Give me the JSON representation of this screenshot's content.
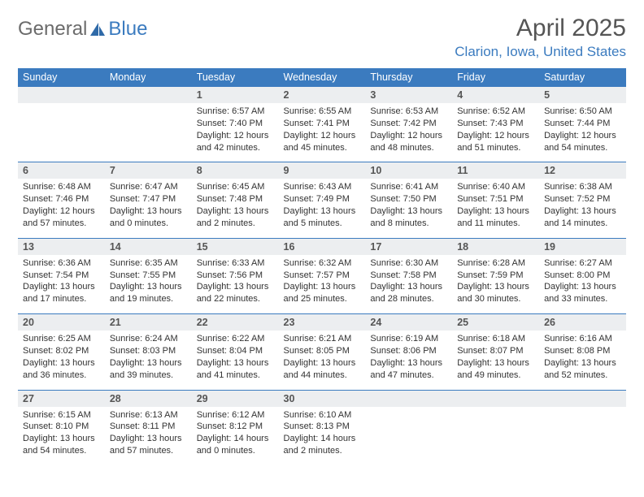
{
  "logo": {
    "text1": "General",
    "text2": "Blue"
  },
  "title": "April 2025",
  "location": "Clarion, Iowa, United States",
  "colors": {
    "header_bg": "#3b7bbf",
    "header_text": "#ffffff",
    "daynum_bg": "#eceef0",
    "border": "#3b7bbf",
    "body_text": "#333333",
    "title_text": "#555555"
  },
  "dow": [
    "Sunday",
    "Monday",
    "Tuesday",
    "Wednesday",
    "Thursday",
    "Friday",
    "Saturday"
  ],
  "weeks": [
    {
      "nums": [
        "",
        "",
        "1",
        "2",
        "3",
        "4",
        "5"
      ],
      "cells": [
        null,
        null,
        {
          "sunrise": "6:57 AM",
          "sunset": "7:40 PM",
          "daylight": "12 hours and 42 minutes."
        },
        {
          "sunrise": "6:55 AM",
          "sunset": "7:41 PM",
          "daylight": "12 hours and 45 minutes."
        },
        {
          "sunrise": "6:53 AM",
          "sunset": "7:42 PM",
          "daylight": "12 hours and 48 minutes."
        },
        {
          "sunrise": "6:52 AM",
          "sunset": "7:43 PM",
          "daylight": "12 hours and 51 minutes."
        },
        {
          "sunrise": "6:50 AM",
          "sunset": "7:44 PM",
          "daylight": "12 hours and 54 minutes."
        }
      ]
    },
    {
      "nums": [
        "6",
        "7",
        "8",
        "9",
        "10",
        "11",
        "12"
      ],
      "cells": [
        {
          "sunrise": "6:48 AM",
          "sunset": "7:46 PM",
          "daylight": "12 hours and 57 minutes."
        },
        {
          "sunrise": "6:47 AM",
          "sunset": "7:47 PM",
          "daylight": "13 hours and 0 minutes."
        },
        {
          "sunrise": "6:45 AM",
          "sunset": "7:48 PM",
          "daylight": "13 hours and 2 minutes."
        },
        {
          "sunrise": "6:43 AM",
          "sunset": "7:49 PM",
          "daylight": "13 hours and 5 minutes."
        },
        {
          "sunrise": "6:41 AM",
          "sunset": "7:50 PM",
          "daylight": "13 hours and 8 minutes."
        },
        {
          "sunrise": "6:40 AM",
          "sunset": "7:51 PM",
          "daylight": "13 hours and 11 minutes."
        },
        {
          "sunrise": "6:38 AM",
          "sunset": "7:52 PM",
          "daylight": "13 hours and 14 minutes."
        }
      ]
    },
    {
      "nums": [
        "13",
        "14",
        "15",
        "16",
        "17",
        "18",
        "19"
      ],
      "cells": [
        {
          "sunrise": "6:36 AM",
          "sunset": "7:54 PM",
          "daylight": "13 hours and 17 minutes."
        },
        {
          "sunrise": "6:35 AM",
          "sunset": "7:55 PM",
          "daylight": "13 hours and 19 minutes."
        },
        {
          "sunrise": "6:33 AM",
          "sunset": "7:56 PM",
          "daylight": "13 hours and 22 minutes."
        },
        {
          "sunrise": "6:32 AM",
          "sunset": "7:57 PM",
          "daylight": "13 hours and 25 minutes."
        },
        {
          "sunrise": "6:30 AM",
          "sunset": "7:58 PM",
          "daylight": "13 hours and 28 minutes."
        },
        {
          "sunrise": "6:28 AM",
          "sunset": "7:59 PM",
          "daylight": "13 hours and 30 minutes."
        },
        {
          "sunrise": "6:27 AM",
          "sunset": "8:00 PM",
          "daylight": "13 hours and 33 minutes."
        }
      ]
    },
    {
      "nums": [
        "20",
        "21",
        "22",
        "23",
        "24",
        "25",
        "26"
      ],
      "cells": [
        {
          "sunrise": "6:25 AM",
          "sunset": "8:02 PM",
          "daylight": "13 hours and 36 minutes."
        },
        {
          "sunrise": "6:24 AM",
          "sunset": "8:03 PM",
          "daylight": "13 hours and 39 minutes."
        },
        {
          "sunrise": "6:22 AM",
          "sunset": "8:04 PM",
          "daylight": "13 hours and 41 minutes."
        },
        {
          "sunrise": "6:21 AM",
          "sunset": "8:05 PM",
          "daylight": "13 hours and 44 minutes."
        },
        {
          "sunrise": "6:19 AM",
          "sunset": "8:06 PM",
          "daylight": "13 hours and 47 minutes."
        },
        {
          "sunrise": "6:18 AM",
          "sunset": "8:07 PM",
          "daylight": "13 hours and 49 minutes."
        },
        {
          "sunrise": "6:16 AM",
          "sunset": "8:08 PM",
          "daylight": "13 hours and 52 minutes."
        }
      ]
    },
    {
      "nums": [
        "27",
        "28",
        "29",
        "30",
        "",
        "",
        ""
      ],
      "cells": [
        {
          "sunrise": "6:15 AM",
          "sunset": "8:10 PM",
          "daylight": "13 hours and 54 minutes."
        },
        {
          "sunrise": "6:13 AM",
          "sunset": "8:11 PM",
          "daylight": "13 hours and 57 minutes."
        },
        {
          "sunrise": "6:12 AM",
          "sunset": "8:12 PM",
          "daylight": "14 hours and 0 minutes."
        },
        {
          "sunrise": "6:10 AM",
          "sunset": "8:13 PM",
          "daylight": "14 hours and 2 minutes."
        },
        null,
        null,
        null
      ]
    }
  ],
  "labels": {
    "sunrise": "Sunrise: ",
    "sunset": "Sunset: ",
    "daylight": "Daylight: "
  }
}
